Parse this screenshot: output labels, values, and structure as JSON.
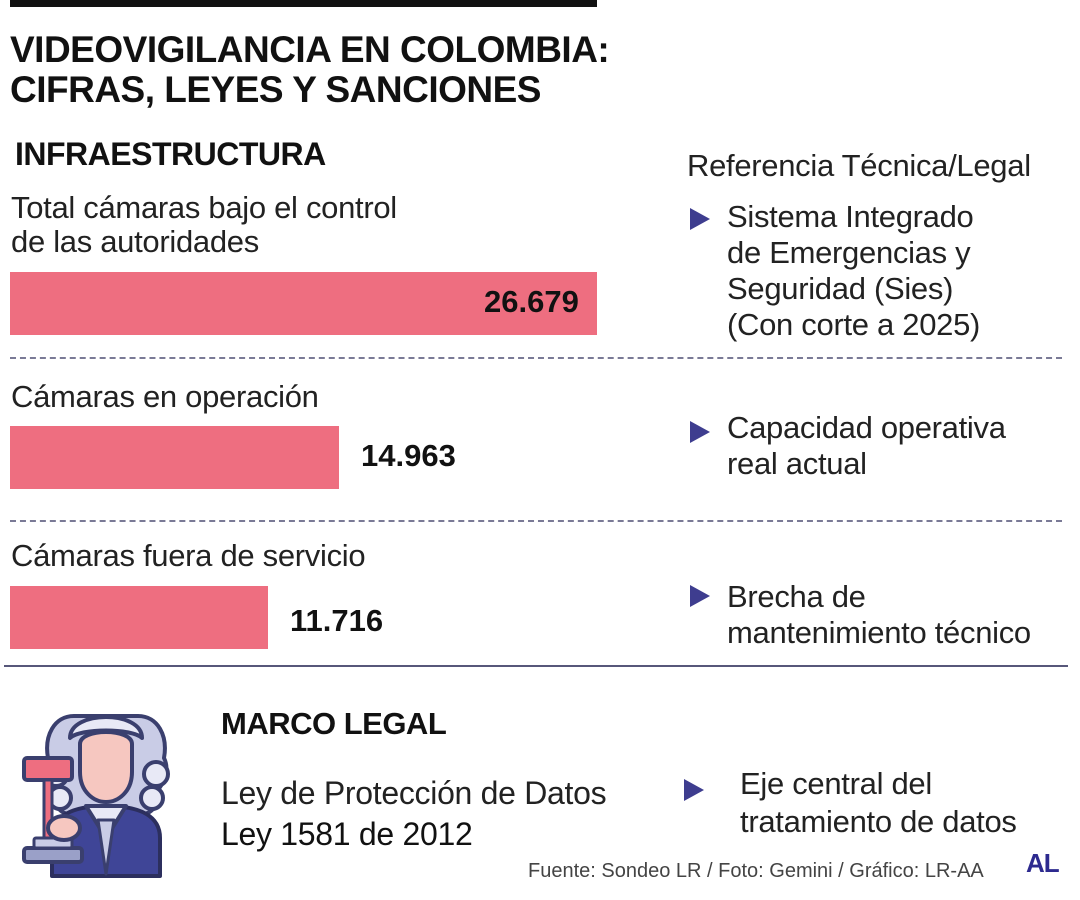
{
  "title": [
    "VIDEOVIGILANCIA EN COLOMBIA:",
    "CIFRAS, LEYES Y SANCIONES"
  ],
  "section_infra": "INFRAESTRUCTURA",
  "ref_header": "Referencia Técnica/Legal",
  "colors": {
    "bar": "#ee6e80",
    "arrow": "#3e3d8f",
    "logo": "#2d2a8f"
  },
  "chart_data": {
    "type": "bar",
    "orientation": "horizontal",
    "categories": [
      "Total cámaras bajo el control de las autoridades",
      "Cámaras en operación",
      "Cámaras fuera de servicio"
    ],
    "category_lines": [
      [
        "Total cámaras bajo el control",
        "de las autoridades"
      ],
      [
        "Cámaras en operación"
      ],
      [
        "Cámaras fuera de servicio"
      ]
    ],
    "values": [
      26679,
      14963,
      11716
    ],
    "value_labels": [
      "26.679",
      "14.963",
      "11.716"
    ],
    "xlim": [
      0,
      26679
    ],
    "grid": false,
    "legend": "none"
  },
  "references": [
    [
      "Sistema Integrado",
      "de Emergencias y",
      "Seguridad (Sies)",
      "(Con corte a 2025)"
    ],
    [
      "Capacidad operativa",
      "real actual"
    ],
    [
      "Brecha de",
      "mantenimiento técnico"
    ]
  ],
  "legal": {
    "header": "MARCO LEGAL",
    "law_name": "Ley de Protección de Datos",
    "law_number": "Ley 1581 de 2012",
    "reference": [
      "Eje central del",
      "tratamiento de datos"
    ],
    "icon": "judge-with-gavel-icon"
  },
  "source": "Fuente: Sondeo LR / Foto: Gemini / Gráfico: LR-AA",
  "logo": "AL"
}
